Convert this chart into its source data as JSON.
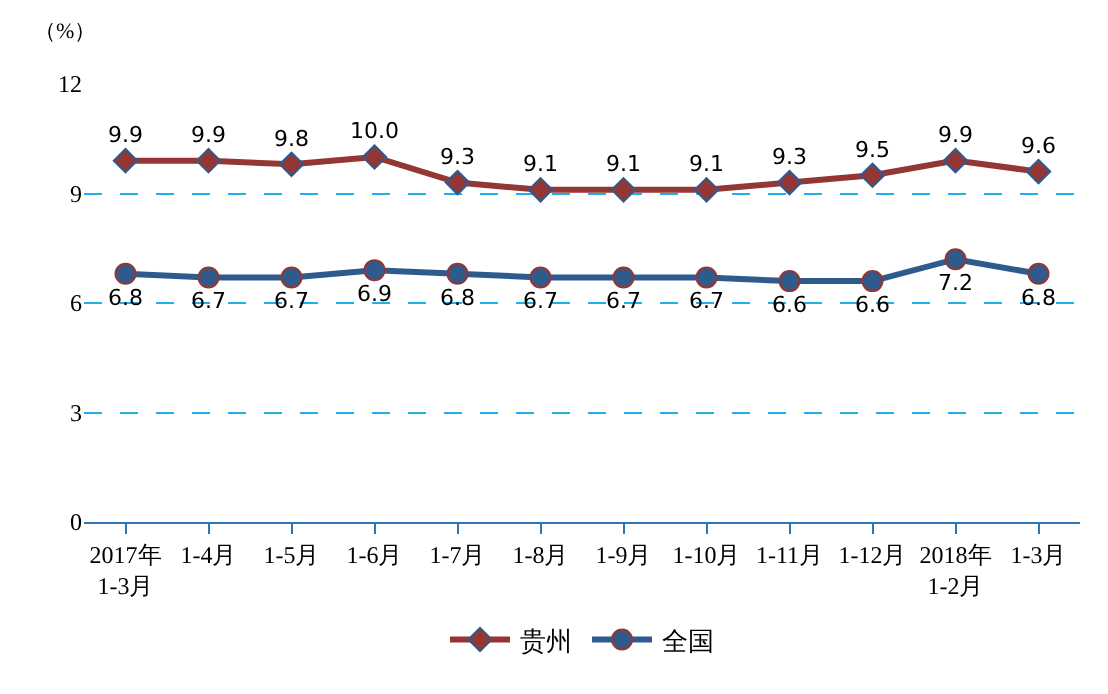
{
  "chart_data": {
    "type": "line",
    "ylabel": "（%）",
    "categories": [
      "2017年\n1-3月",
      "1-4月",
      "1-5月",
      "1-6月",
      "1-7月",
      "1-8月",
      "1-9月",
      "1-10月",
      "1-11月",
      "1-12月",
      "2018年\n1-2月",
      "1-3月"
    ],
    "series": [
      {
        "name": "贵州",
        "color": "#943634",
        "marker": "diamond",
        "values": [
          9.9,
          9.9,
          9.8,
          10.0,
          9.3,
          9.1,
          9.1,
          9.1,
          9.3,
          9.5,
          9.9,
          9.6
        ],
        "value_labels": [
          "9.9",
          "9.9",
          "9.8",
          "10.0",
          "9.3",
          "9.1",
          "9.1",
          "9.1",
          "9.3",
          "9.5",
          "9.9",
          "9.6"
        ]
      },
      {
        "name": "全国",
        "color": "#2f5b8c",
        "marker": "circle",
        "values": [
          6.8,
          6.7,
          6.7,
          6.9,
          6.8,
          6.7,
          6.7,
          6.7,
          6.6,
          6.6,
          7.2,
          6.8
        ],
        "value_labels": [
          "6.8",
          "6.7",
          "6.7",
          "6.9",
          "6.8",
          "6.7",
          "6.7",
          "6.7",
          "6.6",
          "6.6",
          "7.2",
          "6.8"
        ]
      }
    ],
    "ylim": [
      0,
      12
    ],
    "yticks": [
      0,
      3,
      6,
      9,
      12
    ],
    "grid": "y",
    "legend": "bottom"
  }
}
